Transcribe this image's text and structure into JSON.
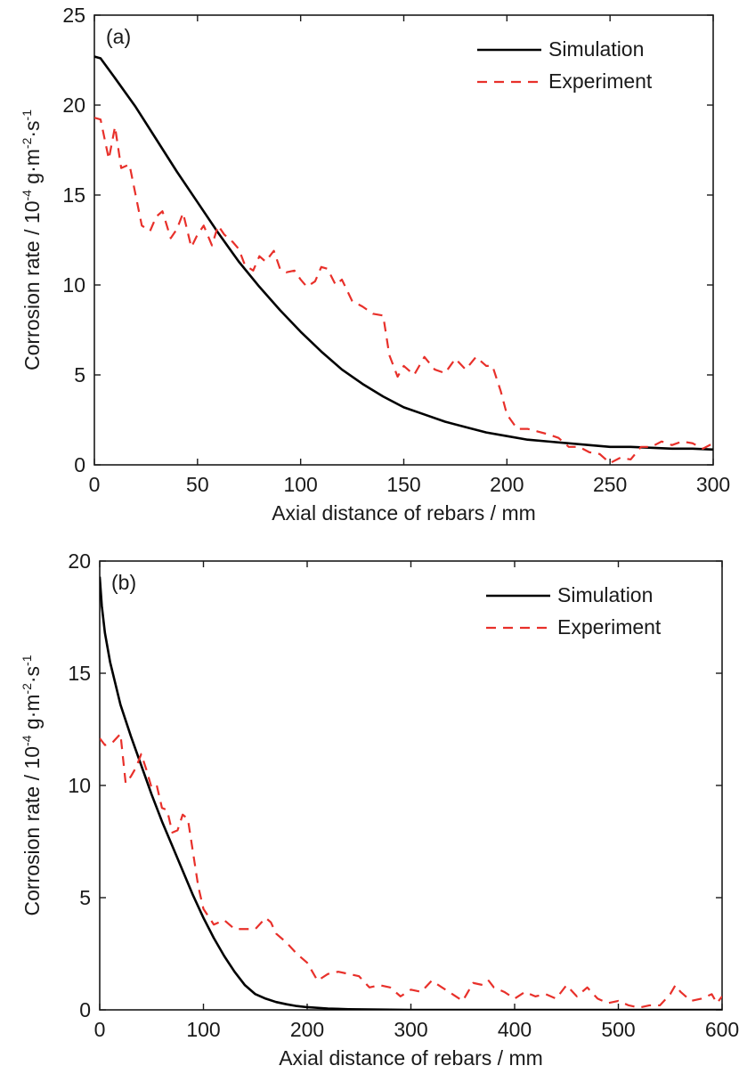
{
  "chart_data": [
    {
      "type": "line",
      "panel_label": "(a)",
      "xlabel": "Axial distance of rebars / mm",
      "ylabel": {
        "prefix": "Corrosion rate / 10",
        "exp1": "-4",
        "mid": " g·m",
        "exp2": "-2",
        "mid2": "·s",
        "exp3": "-1"
      },
      "xlim": [
        0,
        300
      ],
      "ylim": [
        0,
        25
      ],
      "xticks": [
        0,
        50,
        100,
        150,
        200,
        250,
        300
      ],
      "yticks": [
        0,
        5,
        10,
        15,
        20,
        25
      ],
      "grid": false,
      "legend_position": "top-right",
      "series": [
        {
          "name": "Simulation",
          "style": "solid",
          "color": "#000000",
          "x": [
            0,
            3,
            10,
            20,
            30,
            40,
            50,
            60,
            70,
            80,
            90,
            100,
            110,
            120,
            130,
            140,
            150,
            160,
            170,
            180,
            190,
            200,
            210,
            220,
            230,
            240,
            250,
            260,
            270,
            280,
            290,
            300
          ],
          "y": [
            22.7,
            22.6,
            21.5,
            19.9,
            18.1,
            16.3,
            14.6,
            12.9,
            11.3,
            9.9,
            8.6,
            7.4,
            6.3,
            5.3,
            4.5,
            3.8,
            3.2,
            2.8,
            2.4,
            2.1,
            1.8,
            1.6,
            1.4,
            1.3,
            1.2,
            1.1,
            1.0,
            1.0,
            0.95,
            0.9,
            0.9,
            0.85
          ]
        },
        {
          "name": "Experiment",
          "style": "dashed",
          "color": "#e8302a",
          "x": [
            0,
            3,
            7,
            10,
            13,
            17,
            20,
            23,
            27,
            30,
            33,
            37,
            40,
            43,
            47,
            50,
            53,
            57,
            60,
            63,
            67,
            70,
            73,
            77,
            80,
            83,
            87,
            90,
            93,
            97,
            100,
            103,
            107,
            110,
            113,
            117,
            120,
            125,
            130,
            135,
            140,
            143,
            147,
            150,
            155,
            160,
            165,
            170,
            175,
            180,
            185,
            190,
            193,
            197,
            200,
            205,
            210,
            220,
            225,
            230,
            235,
            240,
            245,
            250,
            255,
            260,
            265,
            270,
            275,
            280,
            285,
            290,
            295,
            300
          ],
          "y": [
            19.3,
            19.2,
            17.0,
            18.8,
            16.5,
            16.7,
            15.0,
            13.3,
            13.0,
            13.8,
            14.1,
            12.6,
            13.1,
            14.0,
            12.1,
            12.8,
            13.3,
            12.2,
            13.3,
            12.8,
            12.4,
            12.0,
            11.1,
            10.8,
            11.6,
            11.3,
            11.9,
            10.9,
            10.7,
            10.8,
            10.3,
            9.9,
            10.2,
            11.0,
            10.9,
            10.0,
            10.3,
            9.1,
            8.8,
            8.4,
            8.3,
            6.1,
            4.9,
            5.5,
            5.0,
            6.0,
            5.3,
            5.1,
            5.9,
            5.3,
            6.0,
            5.5,
            5.5,
            4.1,
            2.8,
            2.0,
            2.0,
            1.7,
            1.5,
            1.0,
            1.0,
            0.7,
            0.6,
            0.1,
            0.4,
            0.3,
            1.0,
            1.0,
            1.3,
            1.1,
            1.3,
            1.2,
            0.9,
            1.2
          ]
        }
      ]
    },
    {
      "type": "line",
      "panel_label": "(b)",
      "xlabel": "Axial distance of rebars / mm",
      "ylabel": {
        "prefix": "Corrosion rate / 10",
        "exp1": "-4",
        "mid": " g·m",
        "exp2": "-2",
        "mid2": "·s",
        "exp3": "-1"
      },
      "xlim": [
        0,
        600
      ],
      "ylim": [
        0,
        20
      ],
      "xticks": [
        0,
        100,
        200,
        300,
        400,
        500,
        600
      ],
      "yticks": [
        0,
        5,
        10,
        15,
        20
      ],
      "grid": false,
      "legend_position": "top-right",
      "series": [
        {
          "name": "Simulation",
          "style": "solid",
          "color": "#000000",
          "x": [
            0,
            2,
            5,
            10,
            20,
            30,
            40,
            50,
            60,
            70,
            80,
            90,
            100,
            110,
            120,
            130,
            140,
            150,
            160,
            170,
            180,
            190,
            200,
            220,
            240,
            260,
            280,
            300,
            350,
            400,
            450,
            500,
            550,
            600
          ],
          "y": [
            19.3,
            18.0,
            16.8,
            15.5,
            13.6,
            12.2,
            10.9,
            9.6,
            8.4,
            7.3,
            6.2,
            5.1,
            4.1,
            3.2,
            2.4,
            1.7,
            1.1,
            0.7,
            0.5,
            0.35,
            0.25,
            0.17,
            0.12,
            0.06,
            0.03,
            0.02,
            0.01,
            0.0,
            0.0,
            0.0,
            0.0,
            0.0,
            0.0,
            0.0
          ]
        },
        {
          "name": "Experiment",
          "style": "dashed",
          "color": "#e8302a",
          "x": [
            0,
            5,
            12,
            20,
            25,
            30,
            35,
            40,
            45,
            50,
            55,
            60,
            65,
            70,
            75,
            80,
            85,
            90,
            95,
            100,
            110,
            120,
            130,
            140,
            150,
            160,
            165,
            170,
            180,
            190,
            200,
            210,
            220,
            230,
            240,
            250,
            260,
            270,
            280,
            290,
            300,
            310,
            320,
            330,
            340,
            350,
            360,
            370,
            375,
            380,
            390,
            400,
            410,
            420,
            430,
            440,
            450,
            460,
            470,
            480,
            490,
            500,
            510,
            520,
            530,
            540,
            550,
            555,
            560,
            570,
            580,
            590,
            595,
            600
          ],
          "y": [
            12.1,
            11.8,
            11.9,
            12.3,
            10.1,
            10.4,
            10.8,
            11.4,
            10.7,
            9.9,
            10.0,
            9.0,
            8.9,
            7.9,
            8.0,
            8.7,
            8.5,
            7.0,
            5.5,
            4.5,
            3.8,
            4.0,
            3.6,
            3.6,
            3.6,
            4.1,
            3.9,
            3.4,
            3.0,
            2.5,
            2.1,
            1.3,
            1.6,
            1.7,
            1.6,
            1.5,
            1.0,
            1.1,
            1.0,
            0.6,
            0.9,
            0.8,
            1.3,
            1.0,
            0.7,
            0.4,
            1.2,
            1.1,
            1.3,
            1.0,
            0.8,
            0.5,
            0.8,
            0.6,
            0.7,
            0.5,
            1.1,
            0.6,
            1.0,
            0.5,
            0.3,
            0.4,
            0.2,
            0.1,
            0.2,
            0.2,
            0.7,
            1.1,
            0.8,
            0.4,
            0.5,
            0.7,
            0.3,
            0.6
          ]
        }
      ]
    }
  ]
}
